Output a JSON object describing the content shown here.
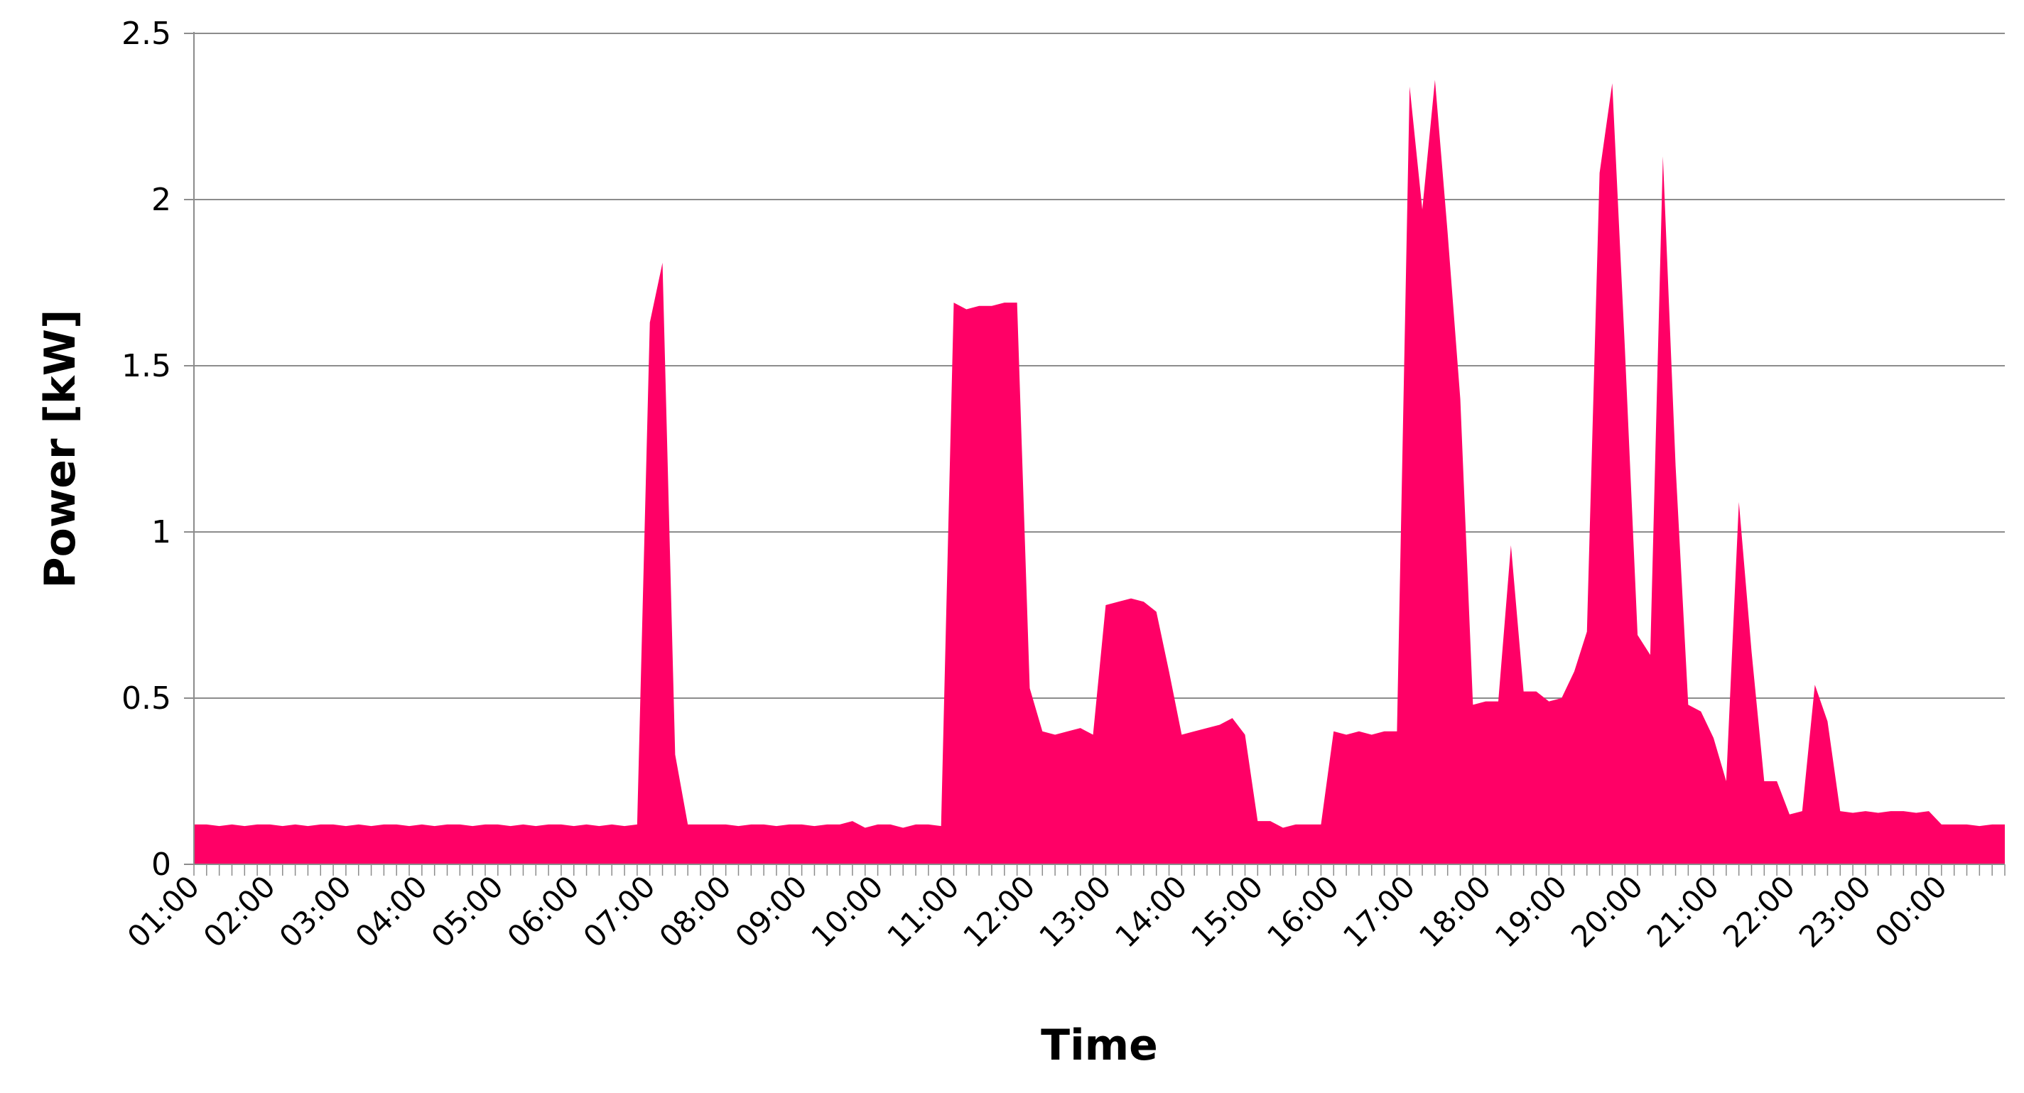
{
  "chart_data": {
    "type": "area",
    "xlabel": "Time",
    "ylabel": "Power [kW]",
    "ylim": [
      0,
      2.5
    ],
    "yticks": [
      "0",
      "0.5",
      "1",
      "1.5",
      "2",
      "2.5"
    ],
    "grid": "horizontal",
    "legend": "none",
    "fill_color": "#FF0066",
    "x_tick_labels": [
      "01:00",
      "02:00",
      "03:00",
      "04:00",
      "05:00",
      "06:00",
      "07:00",
      "08:00",
      "09:00",
      "10:00",
      "11:00",
      "12:00",
      "13:00",
      "14:00",
      "15:00",
      "16:00",
      "17:00",
      "18:00",
      "19:00",
      "20:00",
      "21:00",
      "22:00",
      "23:00",
      "00:00"
    ],
    "x": [
      "01:00",
      "01:10",
      "01:20",
      "01:30",
      "01:40",
      "01:50",
      "02:00",
      "02:10",
      "02:20",
      "02:30",
      "02:40",
      "02:50",
      "03:00",
      "03:10",
      "03:20",
      "03:30",
      "03:40",
      "03:50",
      "04:00",
      "04:10",
      "04:20",
      "04:30",
      "04:40",
      "04:50",
      "05:00",
      "05:10",
      "05:20",
      "05:30",
      "05:40",
      "05:50",
      "06:00",
      "06:10",
      "06:20",
      "06:30",
      "06:40",
      "06:50",
      "07:00",
      "07:10",
      "07:20",
      "07:30",
      "07:40",
      "07:50",
      "08:00",
      "08:10",
      "08:20",
      "08:30",
      "08:40",
      "08:50",
      "09:00",
      "09:10",
      "09:20",
      "09:30",
      "09:40",
      "09:50",
      "10:00",
      "10:10",
      "10:20",
      "10:30",
      "10:40",
      "10:50",
      "11:00",
      "11:10",
      "11:20",
      "11:30",
      "11:40",
      "11:50",
      "12:00",
      "12:10",
      "12:20",
      "12:30",
      "12:40",
      "12:50",
      "13:00",
      "13:10",
      "13:20",
      "13:30",
      "13:40",
      "13:50",
      "14:00",
      "14:10",
      "14:20",
      "14:30",
      "14:40",
      "14:50",
      "15:00",
      "15:10",
      "15:20",
      "15:30",
      "15:40",
      "15:50",
      "16:00",
      "16:10",
      "16:20",
      "16:30",
      "16:40",
      "16:50",
      "17:00",
      "17:10",
      "17:20",
      "17:30",
      "17:40",
      "17:50",
      "18:00",
      "18:10",
      "18:20",
      "18:30",
      "18:40",
      "18:50",
      "19:00",
      "19:10",
      "19:20",
      "19:30",
      "19:40",
      "19:50",
      "20:00",
      "20:10",
      "20:20",
      "20:30",
      "20:40",
      "20:50",
      "21:00",
      "21:10",
      "21:20",
      "21:30",
      "21:40",
      "21:50",
      "22:00",
      "22:10",
      "22:20",
      "22:30",
      "22:40",
      "22:50",
      "23:00",
      "23:10",
      "23:20",
      "23:30",
      "23:40",
      "23:50",
      "00:00",
      "00:10",
      "00:20",
      "00:30",
      "00:40",
      "00:50"
    ],
    "series": [
      {
        "values": [
          0.12,
          0.12,
          0.115,
          0.12,
          0.115,
          0.12,
          0.12,
          0.115,
          0.12,
          0.115,
          0.12,
          0.12,
          0.115,
          0.12,
          0.115,
          0.12,
          0.12,
          0.115,
          0.12,
          0.115,
          0.12,
          0.12,
          0.115,
          0.12,
          0.12,
          0.115,
          0.12,
          0.115,
          0.12,
          0.12,
          0.115,
          0.12,
          0.115,
          0.12,
          0.115,
          0.12,
          1.63,
          1.81,
          0.33,
          0.12,
          0.12,
          0.12,
          0.12,
          0.115,
          0.12,
          0.12,
          0.115,
          0.12,
          0.12,
          0.115,
          0.12,
          0.12,
          0.13,
          0.11,
          0.12,
          0.12,
          0.11,
          0.12,
          0.12,
          0.115,
          1.69,
          1.67,
          1.68,
          1.68,
          1.69,
          1.69,
          0.53,
          0.4,
          0.39,
          0.4,
          0.41,
          0.39,
          0.78,
          0.79,
          0.8,
          0.79,
          0.76,
          0.58,
          0.39,
          0.4,
          0.41,
          0.42,
          0.44,
          0.39,
          0.13,
          0.13,
          0.11,
          0.12,
          0.12,
          0.12,
          0.4,
          0.39,
          0.4,
          0.39,
          0.4,
          0.4,
          2.34,
          1.97,
          2.36,
          1.9,
          1.4,
          0.48,
          0.49,
          0.49,
          0.96,
          0.52,
          0.52,
          0.49,
          0.5,
          0.58,
          0.7,
          2.08,
          2.35,
          1.55,
          0.69,
          0.63,
          2.13,
          1.2,
          0.48,
          0.46,
          0.38,
          0.25,
          1.09,
          0.64,
          0.25,
          0.25,
          0.15,
          0.16,
          0.54,
          0.43,
          0.16,
          0.155,
          0.16,
          0.155,
          0.16,
          0.16,
          0.155,
          0.16,
          0.12,
          0.12,
          0.12,
          0.115,
          0.12,
          0.12
        ]
      }
    ]
  }
}
